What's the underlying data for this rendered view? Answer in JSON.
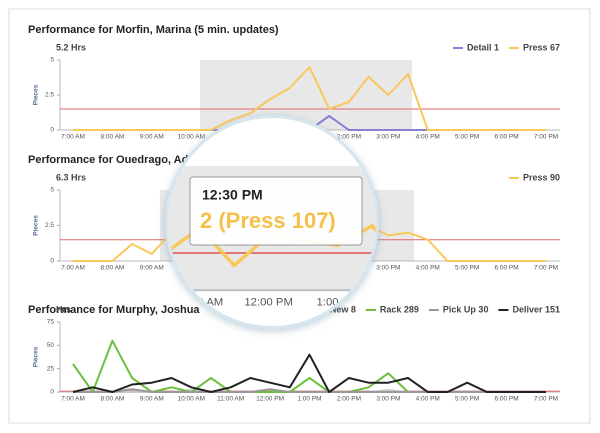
{
  "chart_data": [
    {
      "type": "line",
      "title": "Performance for Morfin, Marina (5 min. updates)",
      "subtitle": "5.2 Hrs",
      "y_label": "Pieces",
      "categories": [
        "7:00 AM",
        null,
        "8:00 AM",
        null,
        "9:00 AM",
        null,
        "10:00 AM",
        null,
        "11:00 AM",
        null,
        "12:00 PM",
        null,
        "1:00 PM",
        null,
        "2:00 PM",
        null,
        "3:00 PM",
        null,
        "4:00 PM",
        null,
        "5:00 PM",
        null,
        "6:00 PM",
        null,
        "7:00 PM"
      ],
      "series": [
        {
          "name": "Detail 1",
          "color": "#8a7fd6",
          "values": [
            0,
            0,
            0,
            0,
            0,
            0,
            0,
            0,
            0,
            0,
            0,
            0,
            0,
            1,
            0,
            0,
            0,
            0,
            0,
            0,
            0,
            0,
            0,
            0,
            0
          ]
        },
        {
          "name": "Press 67",
          "color": "#f9c75a",
          "values": [
            0,
            0,
            0,
            0,
            0,
            0,
            0,
            0,
            0.7,
            1.2,
            2.2,
            3,
            4.5,
            1.5,
            2,
            3.8,
            2.5,
            4,
            0,
            0,
            0,
            0,
            0,
            0,
            0
          ]
        }
      ],
      "target": 1.5,
      "target_color": "#e06666",
      "ylim": [
        0,
        5
      ],
      "yticks": [
        0,
        2.5,
        5
      ]
    },
    {
      "type": "line",
      "title": "Performance for Ouedrago, Adam",
      "subtitle": "6.3 Hrs",
      "y_label": "Pieces",
      "categories": [
        "7:00 AM",
        null,
        "8:00 AM",
        null,
        "9:00 AM",
        null,
        "10:00 AM",
        null,
        "11:00 AM",
        null,
        "12:00 PM",
        null,
        "1:00 PM",
        null,
        "2:00 PM",
        null,
        "3:00 PM",
        null,
        "4:00 PM",
        null,
        "5:00 PM",
        null,
        "6:00 PM",
        null,
        "7:00 PM"
      ],
      "series": [
        {
          "name": "Press 90",
          "color": "#f9c75a",
          "values": [
            0,
            0,
            0,
            1.2,
            0.5,
            2,
            0,
            1.5,
            2.5,
            1,
            2.2,
            2,
            1.8,
            2.6,
            1,
            2.5,
            1.8,
            2,
            1.5,
            0,
            0,
            0,
            0,
            0,
            0
          ]
        }
      ],
      "target": 1.5,
      "target_color": "#e06666",
      "ylim": [
        0,
        5
      ],
      "yticks": [
        0,
        2.5,
        5
      ]
    },
    {
      "type": "line",
      "title": "Performance for Murphy, Joshua",
      "subtitle": "Hrs",
      "y_label": "Pieces",
      "categories": [
        "7:00 AM",
        null,
        "8:00 AM",
        null,
        "9:00 AM",
        null,
        "10:00 AM",
        null,
        "11:00 AM",
        null,
        "12:00 PM",
        null,
        "1:00 PM",
        null,
        "2:00 PM",
        null,
        "3:00 PM",
        null,
        "4:00 PM",
        null,
        "5:00 PM",
        null,
        "6:00 PM",
        null,
        "7:00 PM"
      ],
      "series": [
        {
          "name": "New 8",
          "color": "#c8c8c8",
          "values": [
            0,
            0,
            0,
            0,
            0,
            0,
            2,
            0,
            0,
            0,
            0,
            0,
            0,
            0,
            0,
            0,
            2,
            0,
            0,
            0,
            0,
            0,
            0,
            0,
            0
          ]
        },
        {
          "name": "Rack 289",
          "color": "#6cbf3c",
          "values": [
            30,
            0,
            55,
            15,
            0,
            5,
            0,
            15,
            0,
            0,
            0,
            0,
            15,
            0,
            0,
            5,
            20,
            0,
            0,
            0,
            0,
            0,
            0,
            0,
            0
          ]
        },
        {
          "name": "Pick Up 30",
          "color": "#999999",
          "values": [
            0,
            0,
            0,
            3,
            0,
            0,
            0,
            0,
            0,
            0,
            3,
            0,
            0,
            0,
            0,
            0,
            0,
            0,
            0,
            0,
            0,
            0,
            0,
            0,
            0
          ]
        },
        {
          "name": "Deliver 151",
          "color": "#222222",
          "values": [
            0,
            5,
            0,
            8,
            10,
            15,
            5,
            0,
            5,
            15,
            10,
            5,
            40,
            0,
            15,
            10,
            10,
            15,
            0,
            0,
            10,
            0,
            0,
            0,
            0
          ]
        }
      ],
      "target": 1,
      "target_color": "#e06666",
      "ylim": [
        0,
        75
      ],
      "yticks": [
        0,
        25,
        50,
        75
      ]
    }
  ],
  "tooltip": {
    "title": "12:30 PM",
    "text": "2 (Press 107)"
  }
}
